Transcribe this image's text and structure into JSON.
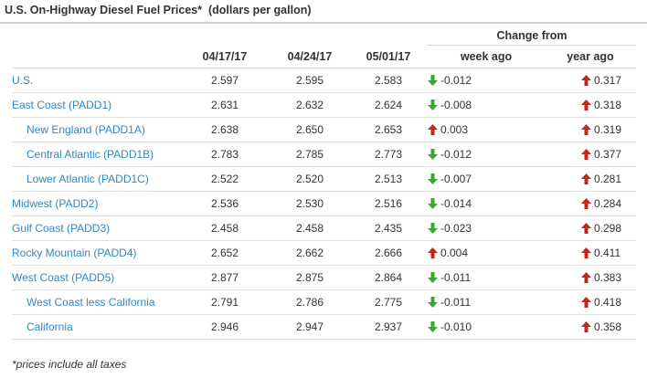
{
  "header": {
    "title": "U.S. On-Highway Diesel Fuel Prices*",
    "unit": "(dollars per gallon)"
  },
  "table": {
    "group_header": "Change from",
    "columns": [
      "",
      "04/17/17",
      "04/24/17",
      "05/01/17",
      "week ago",
      "year ago"
    ],
    "rows": [
      {
        "region": "U.S.",
        "indent": false,
        "p1": "2.597",
        "p2": "2.595",
        "p3": "2.583",
        "week": "-0.012",
        "week_dir": "down",
        "year": "0.317",
        "year_dir": "up"
      },
      {
        "region": "East Coast (PADD1)",
        "indent": false,
        "p1": "2.631",
        "p2": "2.632",
        "p3": "2.624",
        "week": "-0.008",
        "week_dir": "down",
        "year": "0.318",
        "year_dir": "up"
      },
      {
        "region": "New England (PADD1A)",
        "indent": true,
        "p1": "2.638",
        "p2": "2.650",
        "p3": "2.653",
        "week": "0.003",
        "week_dir": "up",
        "year": "0.319",
        "year_dir": "up"
      },
      {
        "region": "Central Atlantic (PADD1B)",
        "indent": true,
        "p1": "2.783",
        "p2": "2.785",
        "p3": "2.773",
        "week": "-0.012",
        "week_dir": "down",
        "year": "0.377",
        "year_dir": "up"
      },
      {
        "region": "Lower Atlantic (PADD1C)",
        "indent": true,
        "p1": "2.522",
        "p2": "2.520",
        "p3": "2.513",
        "week": "-0.007",
        "week_dir": "down",
        "year": "0.281",
        "year_dir": "up"
      },
      {
        "region": "Midwest (PADD2)",
        "indent": false,
        "p1": "2.536",
        "p2": "2.530",
        "p3": "2.516",
        "week": "-0.014",
        "week_dir": "down",
        "year": "0.284",
        "year_dir": "up"
      },
      {
        "region": "Gulf Coast (PADD3)",
        "indent": false,
        "p1": "2.458",
        "p2": "2.458",
        "p3": "2.435",
        "week": "-0.023",
        "week_dir": "down",
        "year": "0.298",
        "year_dir": "up"
      },
      {
        "region": "Rocky Mountain (PADD4)",
        "indent": false,
        "p1": "2.652",
        "p2": "2.662",
        "p3": "2.666",
        "week": "0.004",
        "week_dir": "up",
        "year": "0.411",
        "year_dir": "up"
      },
      {
        "region": "West Coast (PADD5)",
        "indent": false,
        "p1": "2.877",
        "p2": "2.875",
        "p3": "2.864",
        "week": "-0.011",
        "week_dir": "down",
        "year": "0.383",
        "year_dir": "up"
      },
      {
        "region": "West Coast less California",
        "indent": true,
        "p1": "2.791",
        "p2": "2.786",
        "p3": "2.775",
        "week": "-0.011",
        "week_dir": "down",
        "year": "0.418",
        "year_dir": "up"
      },
      {
        "region": "California",
        "indent": true,
        "p1": "2.946",
        "p2": "2.947",
        "p3": "2.937",
        "week": "-0.010",
        "week_dir": "down",
        "year": "0.358",
        "year_dir": "up"
      }
    ]
  },
  "footnote": "*prices include all taxes",
  "colors": {
    "link": "#2f89c5",
    "arrow_up": "#c0281c",
    "arrow_down": "#3aa634"
  },
  "icons": {
    "up": "arrow-up-icon",
    "down": "arrow-down-icon"
  }
}
